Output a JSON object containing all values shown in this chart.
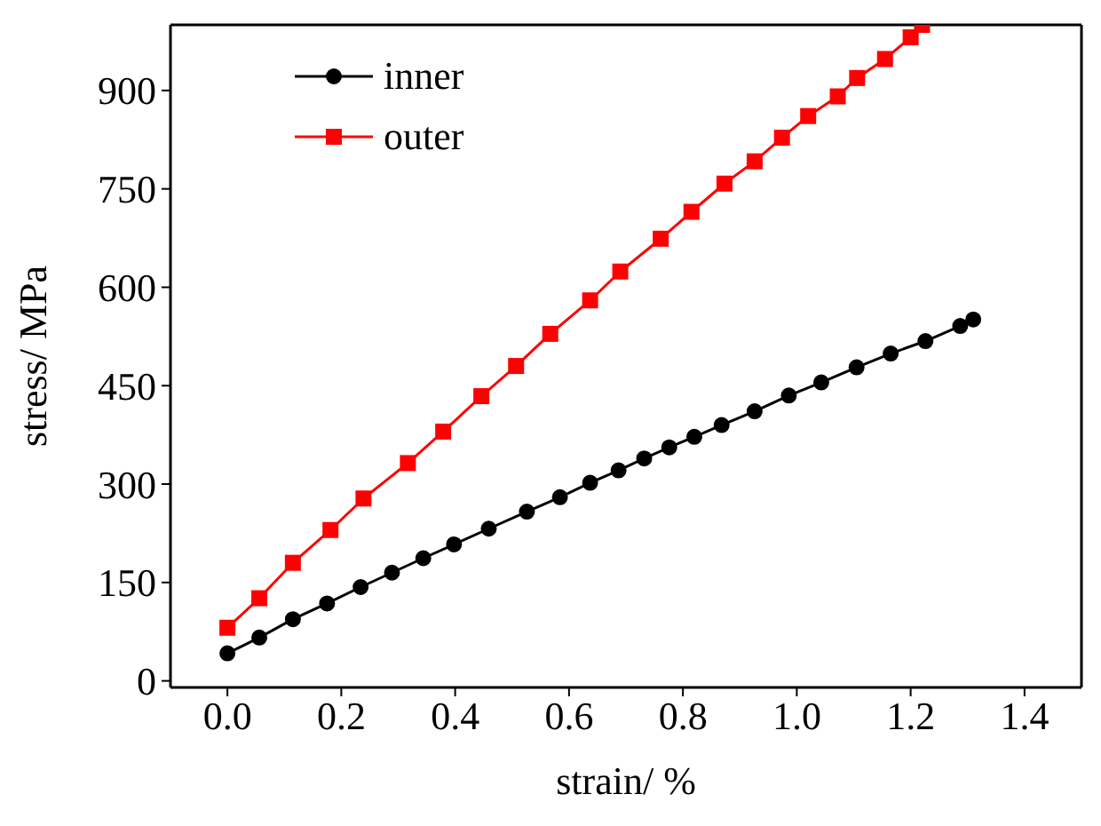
{
  "chart_data": {
    "type": "line",
    "xlabel": "strain/  %",
    "ylabel": "stress/ MPa",
    "xlim": [
      -0.1,
      1.5
    ],
    "xticks": [
      {
        "value": 0,
        "label": "0.0"
      },
      {
        "value": 0.2,
        "label": "0.2"
      },
      {
        "value": 0.4,
        "label": "0.4"
      },
      {
        "value": 0.6,
        "label": "0.6"
      },
      {
        "value": 0.8,
        "label": "0.8"
      },
      {
        "value": 1,
        "label": "1.0"
      },
      {
        "value": 1.2,
        "label": "1.2"
      },
      {
        "value": 1.4,
        "label": "1.4"
      }
    ],
    "ylim": [
      -10,
      1000
    ],
    "yticks": [
      0,
      150,
      300,
      450,
      600,
      750,
      900
    ],
    "legend": "top left",
    "grid": false,
    "series": [
      {
        "name": "inner",
        "color": "#000000",
        "marker": "circle",
        "x": [
          0,
          0.056,
          0.115,
          0.175,
          0.234,
          0.289,
          0.344,
          0.398,
          0.459,
          0.526,
          0.584,
          0.637,
          0.687,
          0.732,
          0.776,
          0.82,
          0.868,
          0.926,
          0.986,
          1.043,
          1.105,
          1.165,
          1.226,
          1.287,
          1.31
        ],
        "values": [
          42,
          66,
          94,
          118,
          143,
          165,
          187,
          208,
          232,
          258,
          280,
          302,
          321,
          339,
          356,
          372,
          390,
          411,
          435,
          455,
          478,
          499,
          518,
          541,
          551
        ]
      },
      {
        "name": "outer",
        "color": "#ff0000",
        "marker": "square",
        "x": [
          0,
          0.056,
          0.115,
          0.181,
          0.239,
          0.317,
          0.379,
          0.446,
          0.507,
          0.567,
          0.637,
          0.69,
          0.761,
          0.815,
          0.873,
          0.926,
          0.974,
          1.02,
          1.072,
          1.106,
          1.155,
          1.2,
          1.22
        ],
        "values": [
          81,
          126,
          180,
          230,
          278,
          332,
          380,
          434,
          480,
          529,
          580,
          624,
          674,
          715,
          758,
          792,
          828,
          861,
          891,
          919,
          948,
          981,
          1000
        ]
      }
    ]
  }
}
